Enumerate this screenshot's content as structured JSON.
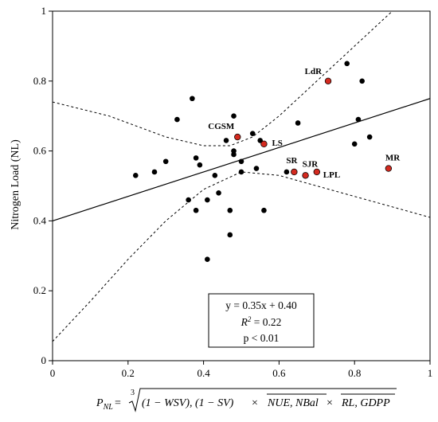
{
  "chart_data": {
    "type": "scatter",
    "title": "",
    "ylabel": "Nitrogen Load (NL)",
    "xlim": [
      0,
      1
    ],
    "ylim": [
      0,
      1
    ],
    "x_ticks": [
      "0",
      "0.2",
      "0.4",
      "0.6",
      "0.8",
      "1"
    ],
    "y_ticks": [
      "0",
      "0.2",
      "0.4",
      "0.6",
      "0.8",
      "1"
    ],
    "grid": false,
    "points": [
      {
        "x": 0.22,
        "y": 0.53
      },
      {
        "x": 0.27,
        "y": 0.54
      },
      {
        "x": 0.3,
        "y": 0.57
      },
      {
        "x": 0.33,
        "y": 0.69
      },
      {
        "x": 0.37,
        "y": 0.75
      },
      {
        "x": 0.38,
        "y": 0.58
      },
      {
        "x": 0.39,
        "y": 0.56
      },
      {
        "x": 0.36,
        "y": 0.46
      },
      {
        "x": 0.38,
        "y": 0.43
      },
      {
        "x": 0.41,
        "y": 0.29
      },
      {
        "x": 0.41,
        "y": 0.46
      },
      {
        "x": 0.43,
        "y": 0.53
      },
      {
        "x": 0.44,
        "y": 0.48
      },
      {
        "x": 0.46,
        "y": 0.63
      },
      {
        "x": 0.47,
        "y": 0.43
      },
      {
        "x": 0.47,
        "y": 0.36
      },
      {
        "x": 0.48,
        "y": 0.59
      },
      {
        "x": 0.48,
        "y": 0.6
      },
      {
        "x": 0.48,
        "y": 0.7
      },
      {
        "x": 0.5,
        "y": 0.54
      },
      {
        "x": 0.5,
        "y": 0.57
      },
      {
        "x": 0.53,
        "y": 0.65
      },
      {
        "x": 0.54,
        "y": 0.55
      },
      {
        "x": 0.55,
        "y": 0.63
      },
      {
        "x": 0.56,
        "y": 0.43
      },
      {
        "x": 0.62,
        "y": 0.54
      },
      {
        "x": 0.65,
        "y": 0.68
      },
      {
        "x": 0.78,
        "y": 0.85
      },
      {
        "x": 0.8,
        "y": 0.62
      },
      {
        "x": 0.81,
        "y": 0.69
      },
      {
        "x": 0.82,
        "y": 0.8
      },
      {
        "x": 0.84,
        "y": 0.64
      }
    ],
    "highlighted": [
      {
        "label": "CGSM",
        "x": 0.49,
        "y": 0.64
      },
      {
        "label": "LS",
        "x": 0.56,
        "y": 0.62
      },
      {
        "label": "LdR",
        "x": 0.73,
        "y": 0.8
      },
      {
        "label": "SR",
        "x": 0.64,
        "y": 0.54
      },
      {
        "label": "SJR",
        "x": 0.67,
        "y": 0.53
      },
      {
        "label": "LPL",
        "x": 0.7,
        "y": 0.54
      },
      {
        "label": "MR",
        "x": 0.89,
        "y": 0.55
      }
    ],
    "regression": {
      "slope": 0.35,
      "intercept": 0.4
    },
    "confidence_upper": [
      [
        0,
        0.74
      ],
      [
        0.15,
        0.7
      ],
      [
        0.3,
        0.64
      ],
      [
        0.4,
        0.615
      ],
      [
        0.47,
        0.615
      ],
      [
        0.53,
        0.64
      ],
      [
        0.6,
        0.7
      ],
      [
        0.7,
        0.8
      ],
      [
        0.8,
        0.9
      ],
      [
        0.9,
        1.0
      ]
    ],
    "confidence_lower": [
      [
        0,
        0.055
      ],
      [
        0.1,
        0.17
      ],
      [
        0.2,
        0.29
      ],
      [
        0.3,
        0.4
      ],
      [
        0.4,
        0.49
      ],
      [
        0.5,
        0.54
      ],
      [
        0.6,
        0.53
      ],
      [
        0.7,
        0.5
      ],
      [
        0.8,
        0.47
      ],
      [
        0.9,
        0.44
      ],
      [
        1.0,
        0.41
      ]
    ],
    "stats": {
      "equation": "y = 0.35x + 0.40",
      "r2_value": " = 0.22",
      "pvalue": "p < 0.01"
    },
    "colors": {
      "point": "#000000",
      "highlight": "#d42a1f",
      "line": "#000000"
    }
  },
  "xlabel": {
    "lhs": "P",
    "lhs_sub": "NL",
    "equals": " = ",
    "root_index": "3",
    "term1": "(1 − WSV), (1 − SV)",
    "times": " × ",
    "term2": "NUE, NBal",
    "term3": "RL, GDPP"
  },
  "stats_r2_symbol": "R",
  "stats_r2_sup": "2"
}
